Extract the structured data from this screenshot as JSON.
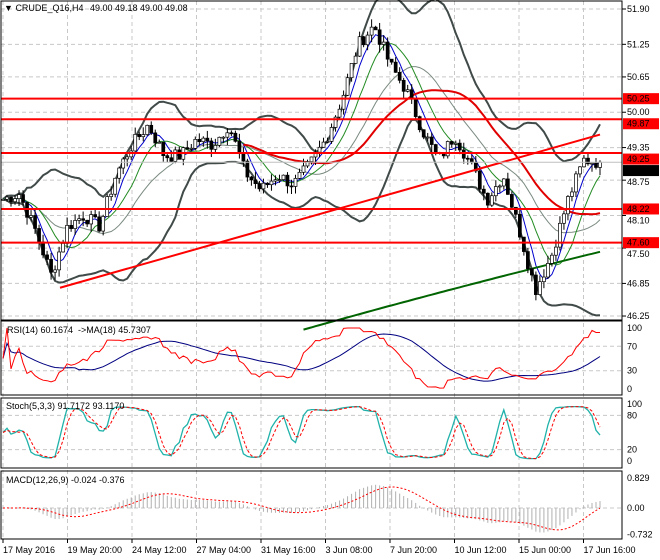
{
  "header": {
    "symbol": "CRUDE_Q16,H4",
    "ohlc": "49.00 49.18 49.00 49.08"
  },
  "panes": {
    "rsi": {
      "label": "RSI(14) 60.1674  ->MA(18) 45.7307",
      "levels": [
        "100",
        "70",
        "30",
        "0"
      ]
    },
    "stoch": {
      "label": "Stoch(5,3,3) 91.7172 93.1170",
      "levels": [
        "100",
        "80",
        "20",
        "0"
      ]
    },
    "macd": {
      "label": "MACD(12,26,9) -0.024 -0.376",
      "levels": [
        "0.829",
        "0.00",
        "-0.732"
      ]
    }
  },
  "colors": {
    "level": "#ff0000",
    "bands": "#404a48",
    "ma_long": "#006400",
    "rsi": "#ff0000",
    "rsi_ma": "#000080",
    "stoch_main": "#20b2aa",
    "stoch_signal": "#ff0000"
  },
  "chart_data": {
    "type": "candlestick",
    "price_axis": [
      "51.90",
      "51.25",
      "50.65",
      "50.00",
      "49.35",
      "48.75",
      "48.10",
      "47.50",
      "46.85",
      "46.25"
    ],
    "ylim": [
      46.25,
      51.9
    ],
    "time_axis": [
      "17 May 2016",
      "19 May 20:00",
      "24 May 12:00",
      "27 May 04:00",
      "31 May 16:00",
      "3 Jun 08:00",
      "7 Jun 20:00",
      "10 Jun 12:00",
      "15 Jun 00:00",
      "17 Jun 16:00"
    ],
    "close_approx": [
      48.4,
      48.5,
      47.83,
      47.0,
      47.9,
      48.1,
      47.9,
      48.85,
      49.4,
      49.77,
      49.2,
      49.2,
      49.5,
      49.4,
      49.77,
      48.9,
      48.57,
      48.85,
      48.67,
      49.03,
      49.5,
      50.23,
      51.24,
      51.6,
      50.87,
      50.4,
      49.67,
      49.12,
      49.58,
      49.03,
      48.38,
      48.85,
      47.83,
      46.73,
      47.37,
      48.38,
      49.12,
      49.08
    ],
    "horizontal_levels": [
      "50.25",
      "49.87",
      "49.25",
      "48.22",
      "47.60"
    ],
    "current_price": "49.08",
    "trendline": {
      "from": 46.77,
      "to": 49.59
    }
  }
}
